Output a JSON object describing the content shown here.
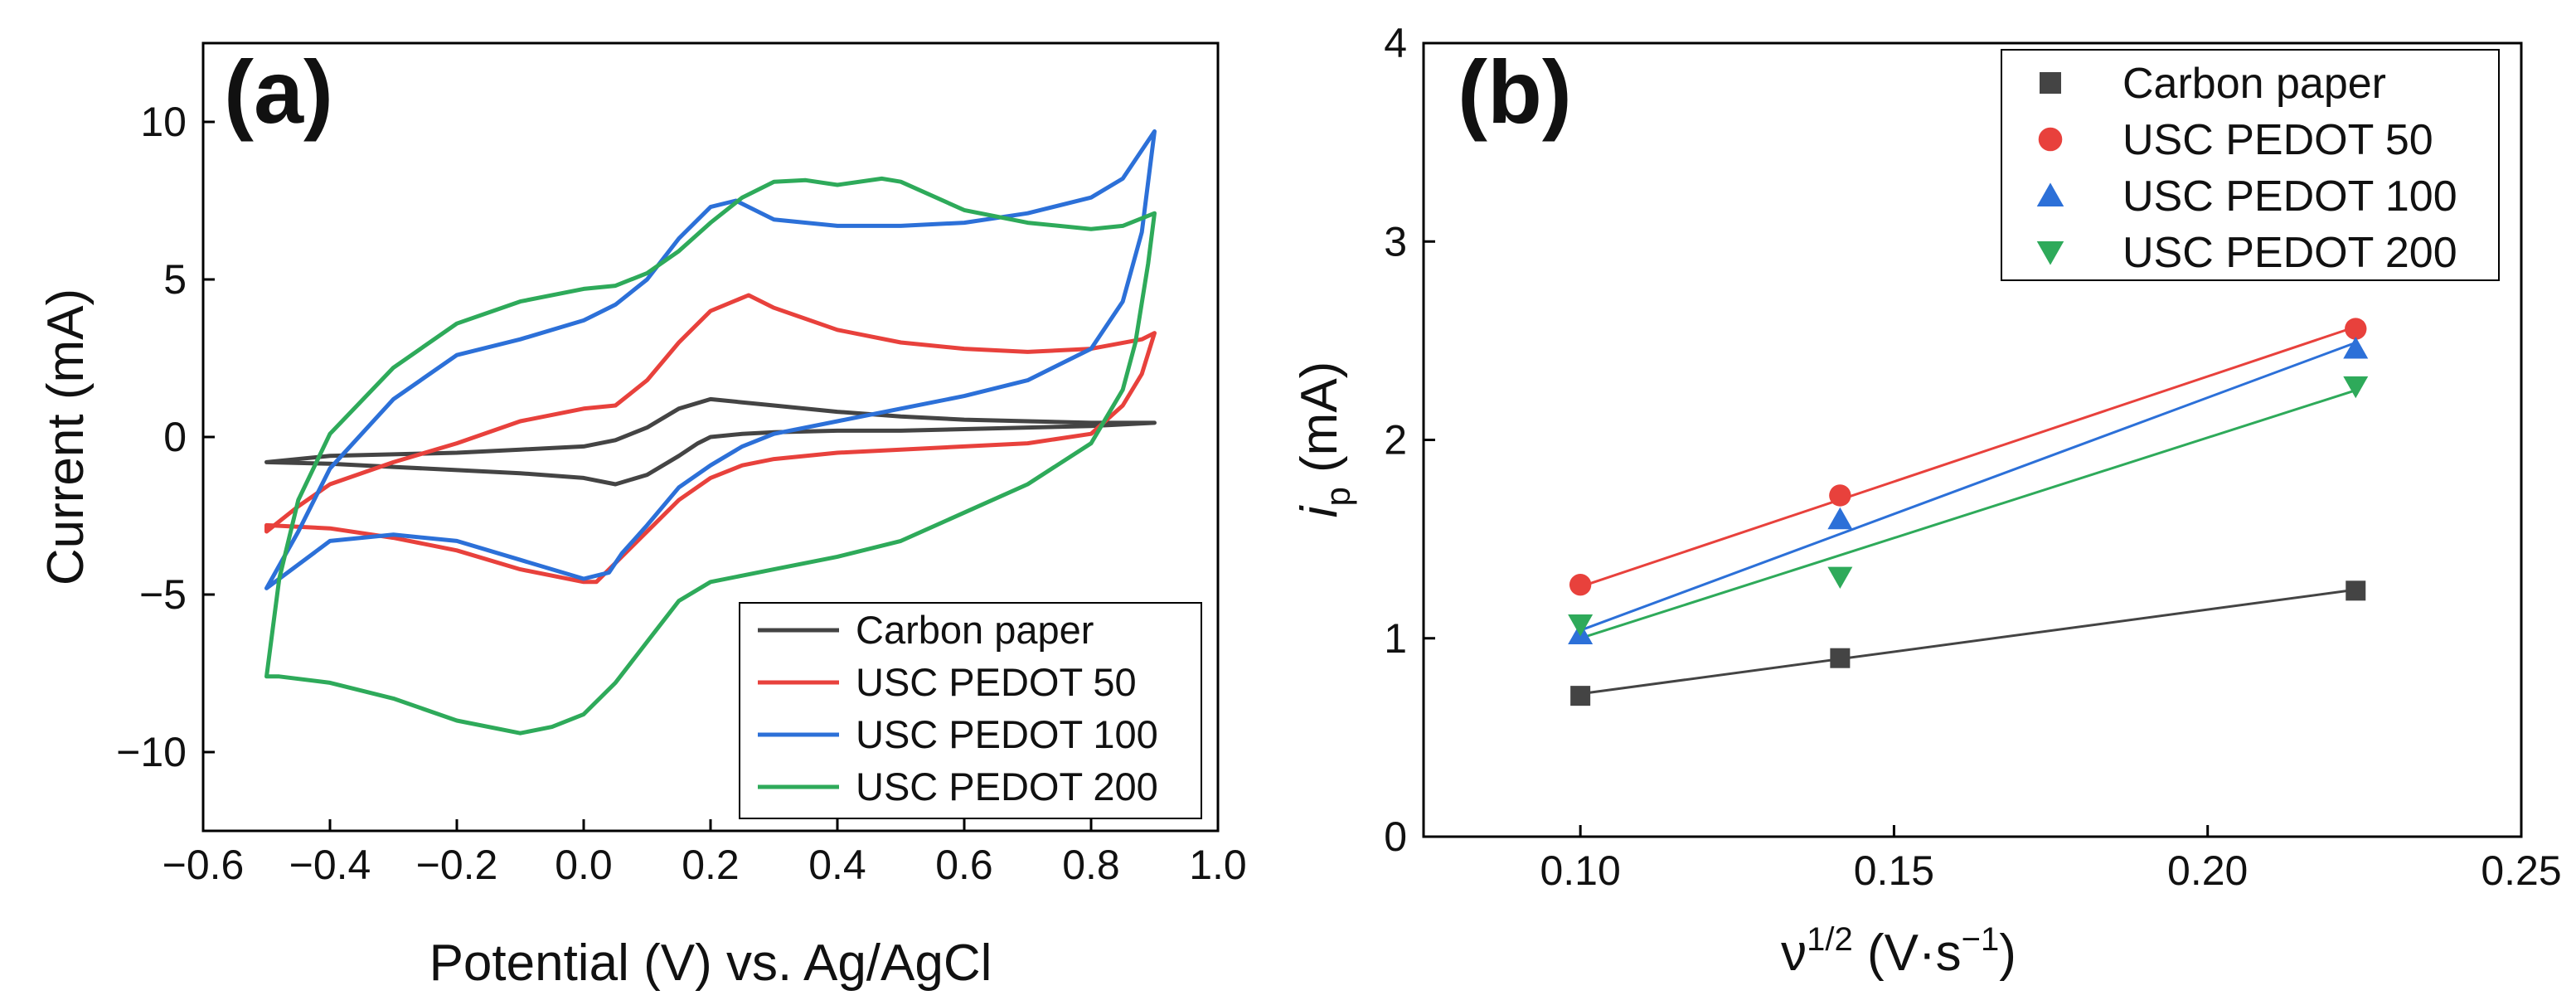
{
  "chart_data": [
    {
      "type": "line",
      "panel_label": "(a)",
      "xlabel": "Potential (V) vs. Ag/AgCl",
      "ylabel": "Current (mA)",
      "xlim": [
        -0.6,
        1.0
      ],
      "ylim": [
        -12.5,
        12.5
      ],
      "xticks": [
        -0.6,
        -0.4,
        -0.2,
        0.0,
        0.2,
        0.4,
        0.6,
        0.8,
        1.0
      ],
      "yticks": [
        -10,
        -5,
        0,
        5,
        10
      ],
      "xtick_labels": [
        "−0.6",
        "−0.4",
        "−0.2",
        "0.0",
        "0.2",
        "0.4",
        "0.6",
        "0.8",
        "1.0"
      ],
      "ytick_labels": [
        "−10",
        "−5",
        "0",
        "5",
        "10"
      ],
      "legend_position": "bottom-right",
      "series": [
        {
          "name": "Carbon paper",
          "color": "#444444",
          "x": [
            -0.5,
            -0.4,
            -0.3,
            -0.2,
            -0.1,
            0.0,
            0.05,
            0.1,
            0.15,
            0.2,
            0.25,
            0.3,
            0.4,
            0.5,
            0.6,
            0.7,
            0.8,
            0.9,
            0.8,
            0.7,
            0.6,
            0.5,
            0.4,
            0.3,
            0.25,
            0.2,
            0.18,
            0.15,
            0.1,
            0.05,
            0.0,
            -0.1,
            -0.2,
            -0.3,
            -0.4,
            -0.5
          ],
          "y": [
            -0.8,
            -0.6,
            -0.55,
            -0.5,
            -0.4,
            -0.3,
            -0.1,
            0.3,
            0.9,
            1.2,
            1.1,
            1.0,
            0.8,
            0.65,
            0.55,
            0.5,
            0.45,
            0.45,
            0.35,
            0.3,
            0.25,
            0.2,
            0.2,
            0.15,
            0.1,
            0.0,
            -0.2,
            -0.6,
            -1.2,
            -1.5,
            -1.3,
            -1.15,
            -1.05,
            -0.95,
            -0.85,
            -0.8
          ]
        },
        {
          "name": "USC PEDOT 50",
          "color": "#e8413c",
          "x": [
            -0.5,
            -0.45,
            -0.4,
            -0.3,
            -0.2,
            -0.1,
            0.0,
            0.05,
            0.1,
            0.15,
            0.2,
            0.26,
            0.3,
            0.4,
            0.5,
            0.6,
            0.7,
            0.8,
            0.88,
            0.9,
            0.88,
            0.85,
            0.8,
            0.7,
            0.6,
            0.5,
            0.4,
            0.3,
            0.25,
            0.2,
            0.15,
            0.1,
            0.05,
            0.02,
            0.0,
            -0.1,
            -0.2,
            -0.3,
            -0.4,
            -0.5
          ],
          "y": [
            -3.0,
            -2.2,
            -1.5,
            -0.8,
            -0.2,
            0.5,
            0.9,
            1.0,
            1.8,
            3.0,
            4.0,
            4.5,
            4.1,
            3.4,
            3.0,
            2.8,
            2.7,
            2.8,
            3.1,
            3.3,
            2.0,
            1.0,
            0.1,
            -0.2,
            -0.3,
            -0.4,
            -0.5,
            -0.7,
            -0.9,
            -1.3,
            -2.0,
            -3.0,
            -4.0,
            -4.6,
            -4.6,
            -4.2,
            -3.6,
            -3.2,
            -2.9,
            -2.8
          ]
        },
        {
          "name": "USC PEDOT 100",
          "color": "#2c70d8",
          "x": [
            -0.5,
            -0.45,
            -0.4,
            -0.3,
            -0.2,
            -0.1,
            0.0,
            0.05,
            0.1,
            0.15,
            0.2,
            0.24,
            0.3,
            0.4,
            0.5,
            0.6,
            0.7,
            0.8,
            0.85,
            0.9,
            0.88,
            0.85,
            0.8,
            0.7,
            0.6,
            0.5,
            0.4,
            0.3,
            0.25,
            0.2,
            0.15,
            0.1,
            0.06,
            0.04,
            0.0,
            -0.1,
            -0.2,
            -0.3,
            -0.4,
            -0.5
          ],
          "y": [
            -4.8,
            -3.0,
            -1.0,
            1.2,
            2.6,
            3.1,
            3.7,
            4.2,
            5.0,
            6.3,
            7.3,
            7.5,
            6.9,
            6.7,
            6.7,
            6.8,
            7.1,
            7.6,
            8.2,
            9.7,
            6.5,
            4.3,
            2.8,
            1.8,
            1.3,
            0.9,
            0.5,
            0.1,
            -0.3,
            -0.9,
            -1.6,
            -2.8,
            -3.7,
            -4.3,
            -4.5,
            -3.9,
            -3.3,
            -3.1,
            -3.3,
            -4.8
          ]
        },
        {
          "name": "USC PEDOT 200",
          "color": "#2eaa5a",
          "x": [
            -0.5,
            -0.48,
            -0.45,
            -0.4,
            -0.3,
            -0.2,
            -0.1,
            0.0,
            0.05,
            0.1,
            0.15,
            0.2,
            0.25,
            0.3,
            0.35,
            0.4,
            0.47,
            0.5,
            0.6,
            0.7,
            0.8,
            0.85,
            0.9,
            0.89,
            0.87,
            0.85,
            0.8,
            0.7,
            0.6,
            0.5,
            0.4,
            0.3,
            0.25,
            0.2,
            0.15,
            0.1,
            0.05,
            0.0,
            -0.05,
            -0.1,
            -0.2,
            -0.3,
            -0.4,
            -0.48,
            -0.5
          ],
          "y": [
            -7.6,
            -4.5,
            -2.0,
            0.1,
            2.2,
            3.6,
            4.3,
            4.7,
            4.8,
            5.2,
            5.9,
            6.8,
            7.6,
            8.1,
            8.15,
            8.0,
            8.2,
            8.1,
            7.2,
            6.8,
            6.6,
            6.7,
            7.1,
            5.5,
            3.0,
            1.5,
            -0.2,
            -1.5,
            -2.4,
            -3.3,
            -3.8,
            -4.2,
            -4.4,
            -4.6,
            -5.2,
            -6.5,
            -7.8,
            -8.8,
            -9.2,
            -9.4,
            -9.0,
            -8.3,
            -7.8,
            -7.6,
            -7.6
          ]
        }
      ]
    },
    {
      "type": "scatter",
      "panel_label": "(b)",
      "xlabel": "ν",
      "xlabel_sup": "1/2",
      "xlabel_unit": " (V·s",
      "xlabel_unit_sup": "−1",
      "xlabel_close": ")",
      "ylabel": "i",
      "ylabel_sub": "p",
      "ylabel_unit": " (mA)",
      "xlim": [
        0.075,
        0.25
      ],
      "ylim": [
        0,
        4
      ],
      "xticks": [
        0.1,
        0.15,
        0.2,
        0.25
      ],
      "yticks": [
        0,
        1,
        2,
        3,
        4
      ],
      "xtick_labels": [
        "0.10",
        "0.15",
        "0.20",
        "0.25"
      ],
      "ytick_labels": [
        "0",
        "1",
        "2",
        "3",
        "4"
      ],
      "legend_position": "top-right",
      "fit": "linear",
      "x": [
        0.1,
        0.1414,
        0.2236
      ],
      "series": [
        {
          "name": "Carbon paper",
          "color": "#444444",
          "marker": "square",
          "values": [
            0.71,
            0.9,
            1.24
          ],
          "fit_values": [
            0.72,
            0.895,
            1.245
          ]
        },
        {
          "name": "USC PEDOT 50",
          "color": "#e8413c",
          "marker": "circle",
          "values": [
            1.27,
            1.72,
            2.56
          ],
          "fit_values": [
            1.26,
            1.695,
            2.57
          ]
        },
        {
          "name": "USC PEDOT 100",
          "color": "#2c70d8",
          "marker": "triangle-up",
          "values": [
            1.02,
            1.6,
            2.46
          ],
          "fit_values": [
            1.04,
            1.535,
            2.49
          ]
        },
        {
          "name": "USC PEDOT 200",
          "color": "#2eaa5a",
          "marker": "triangle-down",
          "values": [
            1.07,
            1.31,
            2.27
          ],
          "fit_values": [
            1.0,
            1.42,
            2.25
          ]
        }
      ]
    }
  ]
}
